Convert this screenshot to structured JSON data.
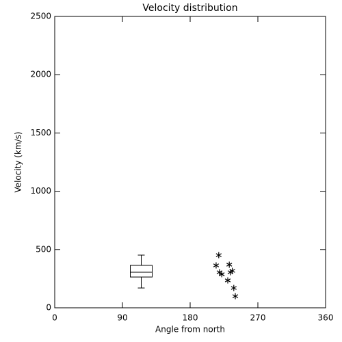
{
  "chart_data": {
    "type": "scatter",
    "title": "Velocity distribution",
    "x_label": "Angle from north",
    "y_label": "Velocity (km/s)",
    "xlim": [
      0,
      360
    ],
    "xticks": [
      0,
      90,
      180,
      270,
      360
    ],
    "ylim": [
      0,
      2500
    ],
    "yticks": [
      0,
      500,
      1000,
      1500,
      2000,
      2500
    ],
    "color": "#000000",
    "x": [
      214.5,
      218,
      219,
      222,
      230,
      232,
      233.6,
      236,
      238,
      240
    ],
    "values": [
      364,
      452,
      305,
      288,
      235,
      370,
      305,
      317,
      170,
      100
    ],
    "box": {
      "x": 115,
      "min": 170,
      "q1": 264,
      "median": 305,
      "q3": 364,
      "max": 452
    }
  }
}
